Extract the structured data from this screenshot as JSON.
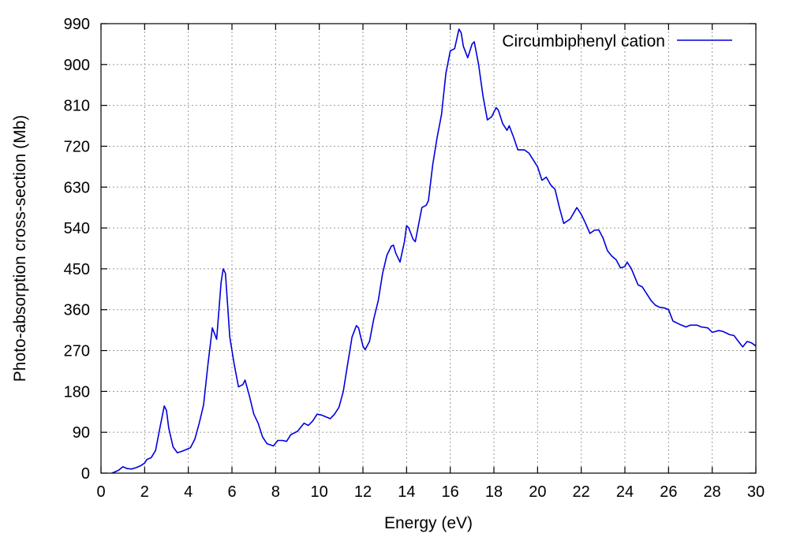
{
  "chart_data": {
    "type": "line",
    "title": "",
    "xlabel": "Energy (eV)",
    "ylabel": "Photo-absorption cross-section (Mb)",
    "xlim": [
      0,
      30
    ],
    "ylim": [
      0,
      990
    ],
    "xticks": [
      0,
      2,
      4,
      6,
      8,
      10,
      12,
      14,
      16,
      18,
      20,
      22,
      24,
      26,
      28,
      30
    ],
    "yticks": [
      0,
      90,
      180,
      270,
      360,
      450,
      540,
      630,
      720,
      810,
      900,
      990
    ],
    "grid": true,
    "legend_position": "top-right",
    "series": [
      {
        "name": "Circumbiphenyl cation",
        "color": "#0000dd",
        "points": [
          [
            0.5,
            0
          ],
          [
            0.8,
            6
          ],
          [
            1.0,
            14
          ],
          [
            1.2,
            10
          ],
          [
            1.4,
            9
          ],
          [
            1.6,
            12
          ],
          [
            1.8,
            16
          ],
          [
            2.0,
            22
          ],
          [
            2.1,
            30
          ],
          [
            2.3,
            34
          ],
          [
            2.5,
            50
          ],
          [
            2.7,
            100
          ],
          [
            2.9,
            148
          ],
          [
            3.0,
            138
          ],
          [
            3.1,
            100
          ],
          [
            3.3,
            58
          ],
          [
            3.5,
            45
          ],
          [
            3.7,
            48
          ],
          [
            3.9,
            52
          ],
          [
            4.1,
            56
          ],
          [
            4.3,
            75
          ],
          [
            4.5,
            110
          ],
          [
            4.7,
            150
          ],
          [
            4.9,
            240
          ],
          [
            5.1,
            320
          ],
          [
            5.3,
            295
          ],
          [
            5.5,
            420
          ],
          [
            5.6,
            450
          ],
          [
            5.7,
            440
          ],
          [
            5.8,
            370
          ],
          [
            5.9,
            300
          ],
          [
            6.1,
            240
          ],
          [
            6.3,
            190
          ],
          [
            6.5,
            195
          ],
          [
            6.6,
            205
          ],
          [
            6.8,
            170
          ],
          [
            7.0,
            130
          ],
          [
            7.2,
            110
          ],
          [
            7.4,
            80
          ],
          [
            7.6,
            65
          ],
          [
            7.9,
            60
          ],
          [
            8.1,
            72
          ],
          [
            8.3,
            72
          ],
          [
            8.5,
            70
          ],
          [
            8.7,
            85
          ],
          [
            9.0,
            92
          ],
          [
            9.3,
            110
          ],
          [
            9.5,
            105
          ],
          [
            9.7,
            115
          ],
          [
            9.9,
            130
          ],
          [
            10.1,
            128
          ],
          [
            10.3,
            124
          ],
          [
            10.5,
            120
          ],
          [
            10.7,
            130
          ],
          [
            10.9,
            145
          ],
          [
            11.1,
            180
          ],
          [
            11.3,
            240
          ],
          [
            11.5,
            300
          ],
          [
            11.7,
            325
          ],
          [
            11.8,
            320
          ],
          [
            11.9,
            300
          ],
          [
            12.0,
            280
          ],
          [
            12.1,
            272
          ],
          [
            12.3,
            290
          ],
          [
            12.5,
            340
          ],
          [
            12.7,
            380
          ],
          [
            12.9,
            440
          ],
          [
            13.1,
            480
          ],
          [
            13.3,
            500
          ],
          [
            13.4,
            502
          ],
          [
            13.5,
            485
          ],
          [
            13.7,
            465
          ],
          [
            13.9,
            510
          ],
          [
            14.0,
            545
          ],
          [
            14.1,
            540
          ],
          [
            14.3,
            515
          ],
          [
            14.4,
            510
          ],
          [
            14.6,
            560
          ],
          [
            14.7,
            585
          ],
          [
            14.9,
            590
          ],
          [
            15.0,
            600
          ],
          [
            15.2,
            680
          ],
          [
            15.4,
            740
          ],
          [
            15.6,
            790
          ],
          [
            15.8,
            880
          ],
          [
            16.0,
            930
          ],
          [
            16.2,
            935
          ],
          [
            16.4,
            978
          ],
          [
            16.5,
            970
          ],
          [
            16.6,
            940
          ],
          [
            16.8,
            915
          ],
          [
            17.0,
            945
          ],
          [
            17.1,
            950
          ],
          [
            17.3,
            900
          ],
          [
            17.5,
            830
          ],
          [
            17.7,
            778
          ],
          [
            17.9,
            785
          ],
          [
            18.1,
            805
          ],
          [
            18.2,
            800
          ],
          [
            18.4,
            770
          ],
          [
            18.6,
            755
          ],
          [
            18.7,
            765
          ],
          [
            18.9,
            740
          ],
          [
            19.1,
            712
          ],
          [
            19.4,
            712
          ],
          [
            19.6,
            705
          ],
          [
            19.8,
            690
          ],
          [
            20.0,
            675
          ],
          [
            20.2,
            645
          ],
          [
            20.4,
            652
          ],
          [
            20.6,
            635
          ],
          [
            20.8,
            625
          ],
          [
            21.0,
            585
          ],
          [
            21.2,
            550
          ],
          [
            21.5,
            560
          ],
          [
            21.8,
            585
          ],
          [
            22.0,
            570
          ],
          [
            22.2,
            550
          ],
          [
            22.4,
            528
          ],
          [
            22.6,
            535
          ],
          [
            22.8,
            536
          ],
          [
            23.0,
            518
          ],
          [
            23.2,
            490
          ],
          [
            23.4,
            478
          ],
          [
            23.6,
            470
          ],
          [
            23.8,
            452
          ],
          [
            24.0,
            455
          ],
          [
            24.1,
            465
          ],
          [
            24.3,
            450
          ],
          [
            24.6,
            415
          ],
          [
            24.8,
            410
          ],
          [
            25.0,
            395
          ],
          [
            25.2,
            380
          ],
          [
            25.4,
            370
          ],
          [
            25.6,
            365
          ],
          [
            25.8,
            364
          ],
          [
            26.0,
            360
          ],
          [
            26.2,
            335
          ],
          [
            26.5,
            328
          ],
          [
            26.8,
            322
          ],
          [
            27.0,
            326
          ],
          [
            27.3,
            326
          ],
          [
            27.5,
            322
          ],
          [
            27.8,
            320
          ],
          [
            28.0,
            310
          ],
          [
            28.3,
            314
          ],
          [
            28.5,
            312
          ],
          [
            28.8,
            305
          ],
          [
            29.0,
            303
          ],
          [
            29.2,
            290
          ],
          [
            29.4,
            278
          ],
          [
            29.6,
            290
          ],
          [
            29.8,
            287
          ],
          [
            30.0,
            280
          ]
        ]
      }
    ]
  }
}
